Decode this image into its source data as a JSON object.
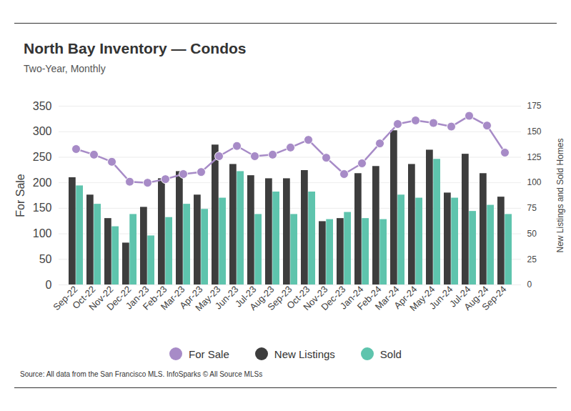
{
  "chart_data": {
    "type": "bar",
    "title": "North Bay Inventory — Condos",
    "subtitle": "Two-Year, Monthly",
    "caption": "Source:  All data from the San Francisco MLS. InfoSparks © All Source MLSs",
    "categories": [
      "Sep-22",
      "Oct-22",
      "Nov-22",
      "Dec-22",
      "Jan-23",
      "Feb-23",
      "Mar-23",
      "Apr-23",
      "May-23",
      "Jun-23",
      "Jul-23",
      "Aug-23",
      "Sep-23",
      "Oct-23",
      "Nov-23",
      "Dec-23",
      "Jan-24",
      "Feb-24",
      "Mar-24",
      "Apr-24",
      "May-24",
      "Jun-24",
      "Jul-24",
      "Aug-24",
      "Sep-24"
    ],
    "ylabel": "For Sale",
    "y2label": "New Listings and Sold Homes",
    "ylim": [
      0,
      350
    ],
    "yticks": [
      0,
      50,
      100,
      150,
      200,
      250,
      300,
      350
    ],
    "y2lim": [
      0,
      175
    ],
    "y2ticks": [
      0,
      25,
      50,
      75,
      100,
      125,
      150,
      175
    ],
    "grid": true,
    "legend": "bottom",
    "series": [
      {
        "name": "For Sale",
        "type": "line",
        "marker": "circle",
        "color": "#a78bc7",
        "values": [
          266,
          255,
          241,
          202,
          200,
          207,
          217,
          221,
          252,
          272,
          252,
          255,
          269,
          284,
          249,
          217,
          238,
          277,
          315,
          322,
          317,
          310,
          331,
          312,
          259
        ]
      },
      {
        "name": "New Listings",
        "type": "bar",
        "axis": "y2",
        "color": "#3d3d3d",
        "values": [
          105,
          88,
          65,
          41,
          76,
          104,
          111,
          88,
          137,
          118,
          107,
          104,
          104,
          112,
          62,
          65,
          109,
          116,
          151,
          118,
          132,
          90,
          128,
          109,
          86
        ]
      },
      {
        "name": "Sold",
        "type": "bar",
        "axis": "y2",
        "color": "#5ec4ad",
        "values": [
          97,
          79,
          57,
          69,
          48,
          66,
          79,
          74,
          85,
          111,
          69,
          91,
          69,
          91,
          64,
          71,
          65,
          64,
          88,
          85,
          123,
          85,
          72,
          78,
          69
        ]
      }
    ]
  }
}
